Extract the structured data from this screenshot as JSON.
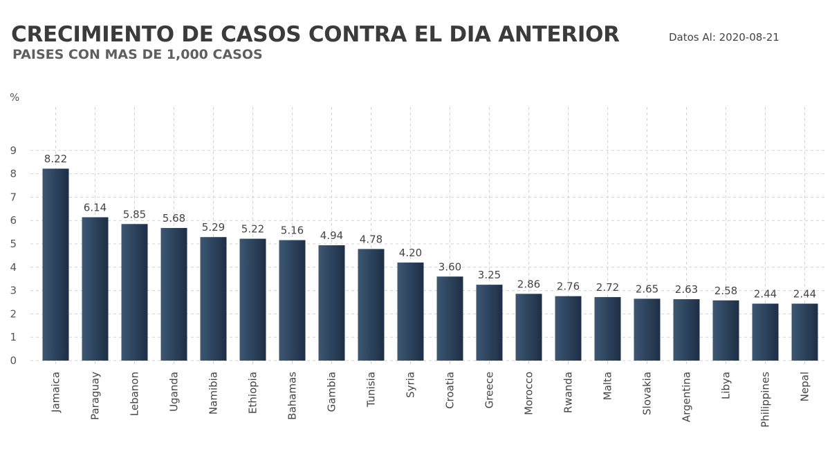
{
  "header": {
    "title": "CRECIMIENTO DE CASOS CONTRA EL DIA ANTERIOR",
    "subtitle": "PAISES CON MAS DE 1,000 CASOS",
    "date_label": "Datos Al: 2020-08-21"
  },
  "chart_data": {
    "type": "bar",
    "title": "CRECIMIENTO DE CASOS CONTRA EL DIA ANTERIOR",
    "subtitle": "PAISES CON MAS DE 1,000 CASOS",
    "ylabel": "%",
    "xlabel": "",
    "ylim": [
      0,
      9
    ],
    "yticks": [
      0,
      1,
      2,
      3,
      4,
      5,
      6,
      7,
      8,
      9
    ],
    "grid": true,
    "categories": [
      "Jamaica",
      "Paraguay",
      "Lebanon",
      "Uganda",
      "Namibia",
      "Ethiopia",
      "Bahamas",
      "Gambia",
      "Tunisia",
      "Syria",
      "Croatia",
      "Greece",
      "Morocco",
      "Rwanda",
      "Malta",
      "Slovakia",
      "Argentina",
      "Libya",
      "Philippines",
      "Nepal"
    ],
    "values": [
      8.22,
      6.14,
      5.85,
      5.68,
      5.29,
      5.22,
      5.16,
      4.94,
      4.78,
      4.2,
      3.6,
      3.25,
      2.86,
      2.76,
      2.72,
      2.65,
      2.63,
      2.58,
      2.44,
      2.44
    ],
    "data_labels": [
      "8.22",
      "6.14",
      "5.85",
      "5.68",
      "5.29",
      "5.22",
      "5.16",
      "4.94",
      "4.78",
      "4.20",
      "3.60",
      "3.25",
      "2.86",
      "2.76",
      "2.72",
      "2.65",
      "2.63",
      "2.58",
      "2.44",
      "2.44"
    ],
    "bar_color_dark": "#1e2f45",
    "bar_color_light": "#3c5773",
    "grid_color": "#d3d3d3"
  }
}
